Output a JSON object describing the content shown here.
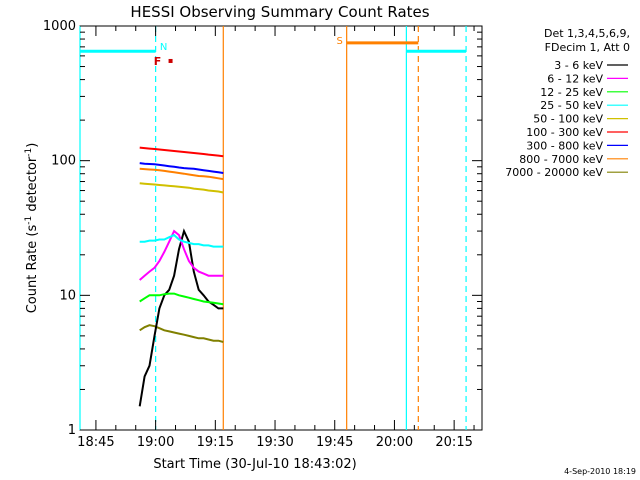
{
  "chart_data": {
    "type": "line",
    "title": "HESSI Observing Summary Count Rates",
    "xlabel": "Start Time (30-Jul-10 18:43:02)",
    "ylabel_main": "Count Rate (s",
    "ylabel_sup1": "-1",
    "ylabel_mid": " detector",
    "ylabel_sup2": "-1",
    "ylabel_end": ")",
    "y_scale": "log",
    "ylim": [
      1,
      1000
    ],
    "xlim": [
      "18:41",
      "20:22"
    ],
    "xticks": [
      "18:45",
      "19:00",
      "19:15",
      "19:30",
      "19:45",
      "20:00",
      "20:15"
    ],
    "yticks": [
      "1",
      "10",
      "100",
      "1000"
    ],
    "legend_header": [
      "Det 1,3,4,5,6,9,",
      "FDecim 1, Att 0"
    ],
    "series": [
      {
        "name": "3 - 6 keV",
        "color": "#000000",
        "t_start": "18:56",
        "t_end": "19:17",
        "values": [
          1.5,
          2.5,
          3,
          5,
          8,
          10,
          11,
          14,
          22,
          30,
          25,
          15,
          11,
          10,
          9,
          8.5,
          8,
          8
        ]
      },
      {
        "name": "6 - 12 keV",
        "color": "#ff00ff",
        "t_start": "18:56",
        "t_end": "19:17",
        "values": [
          13,
          14,
          15,
          16,
          18,
          21,
          25,
          30,
          28,
          22,
          18,
          16,
          15,
          14.5,
          14,
          14,
          14,
          14
        ]
      },
      {
        "name": "12 - 25 keV",
        "color": "#00ff00",
        "t_start": "18:56",
        "t_end": "19:17",
        "values": [
          9,
          9.5,
          10,
          10,
          10,
          10.2,
          10.3,
          10.3,
          10,
          9.8,
          9.6,
          9.4,
          9.2,
          9,
          8.9,
          8.8,
          8.7,
          8.6
        ]
      },
      {
        "name": "25 - 50 keV",
        "color": "#00ffff",
        "t_start": "18:56",
        "t_end": "19:17",
        "values": [
          25,
          25,
          25.5,
          25.5,
          26,
          26,
          27,
          28,
          26,
          25,
          24.5,
          24,
          24,
          23.5,
          23.5,
          23,
          23,
          23
        ]
      },
      {
        "name": "50 - 100 keV",
        "color": "#d0c000",
        "t_start": "18:56",
        "t_end": "19:17",
        "values": [
          68,
          67.5,
          67,
          66.5,
          66,
          65.5,
          65,
          64.5,
          64,
          63.5,
          63,
          62,
          61.5,
          61,
          60,
          59.5,
          59,
          58
        ]
      },
      {
        "name": "100 - 300 keV",
        "color": "#ff0000",
        "t_start": "18:56",
        "t_end": "19:17",
        "values": [
          125,
          124,
          123,
          122,
          121,
          120,
          119,
          118,
          117,
          116,
          115,
          114,
          113,
          112,
          111,
          110,
          109,
          108
        ]
      },
      {
        "name": "300 - 800 keV",
        "color": "#0000ff",
        "t_start": "18:56",
        "t_end": "19:17",
        "values": [
          96,
          95,
          94.5,
          94,
          93,
          92,
          91,
          90,
          89,
          88,
          87.5,
          87,
          86,
          85,
          84,
          83,
          82,
          81
        ]
      },
      {
        "name": "800 - 7000 keV",
        "color": "#ff8000",
        "t_start": "18:56",
        "t_end": "19:17",
        "values": [
          87,
          86.5,
          86,
          85.5,
          85,
          84,
          83,
          82,
          81,
          80,
          79,
          78,
          77,
          76.5,
          76,
          75,
          74,
          73
        ]
      },
      {
        "name": "7000 - 20000 keV",
        "color": "#808000",
        "t_start": "18:56",
        "t_end": "19:17",
        "values": [
          5.5,
          5.8,
          6,
          5.9,
          5.7,
          5.5,
          5.4,
          5.3,
          5.2,
          5.1,
          5,
          4.9,
          4.8,
          4.8,
          4.7,
          4.6,
          4.6,
          4.5
        ]
      }
    ],
    "orbit_flags": [
      {
        "label": "N",
        "color": "#00ffff",
        "t_start": "18:41",
        "t_end": "19:00",
        "level": 650
      },
      {
        "label": "S",
        "color": "#ff8000",
        "t_start": "19:48",
        "t_end": "20:06",
        "level": 750
      },
      {
        "label": "",
        "color": "#00ffff",
        "t_start": "20:03",
        "t_end": "20:18",
        "level": 650
      }
    ],
    "flare_marker": {
      "label": "F",
      "color": "#cc0000",
      "t": "19:03",
      "level": 550
    },
    "vertical_markers": [
      {
        "t": "18:41",
        "color": "#00ffff",
        "style": "solid"
      },
      {
        "t": "19:00",
        "color": "#00ffff",
        "style": "dashed"
      },
      {
        "t": "19:17",
        "color": "#ff8000",
        "style": "solid"
      },
      {
        "t": "19:48",
        "color": "#ff8000",
        "style": "solid"
      },
      {
        "t": "20:03",
        "color": "#00ffff",
        "style": "solid"
      },
      {
        "t": "20:06",
        "color": "#ff8000",
        "style": "dashed"
      },
      {
        "t": "20:18",
        "color": "#00ffff",
        "style": "dashed"
      }
    ],
    "grid": false,
    "legend_position": "right"
  },
  "footer": {
    "timestamp": "4-Sep-2010 18:19"
  }
}
